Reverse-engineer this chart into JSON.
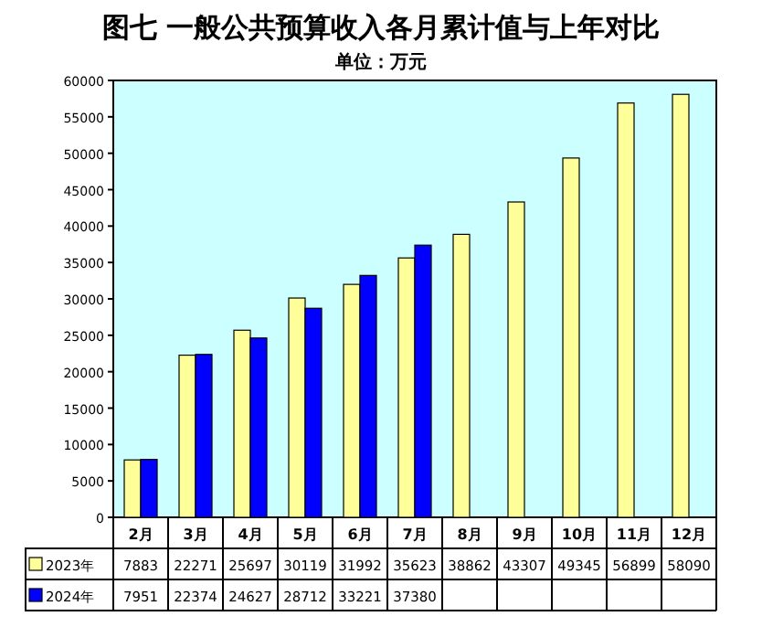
{
  "chart_data": {
    "type": "bar",
    "title": "图七  一般公共预算收入各月累计值与上年对比",
    "subtitle": "单位：万元",
    "categories": [
      "2月",
      "3月",
      "4月",
      "5月",
      "6月",
      "7月",
      "8月",
      "9月",
      "10月",
      "11月",
      "12月"
    ],
    "series": [
      {
        "name": "2023年",
        "color": "#ffff99",
        "values": [
          7883,
          22271,
          25697,
          30119,
          31992,
          35623,
          38862,
          43307,
          49345,
          56899,
          58090
        ]
      },
      {
        "name": "2024年",
        "color": "#0000ff",
        "values": [
          7951,
          22374,
          24627,
          28712,
          33221,
          37380,
          null,
          null,
          null,
          null,
          null
        ]
      }
    ],
    "ylim": [
      0,
      60000
    ],
    "yticks": [
      0,
      5000,
      10000,
      15000,
      20000,
      25000,
      30000,
      35000,
      40000,
      45000,
      50000,
      55000,
      60000
    ],
    "data_labels": true,
    "legend": "bottom left",
    "grid": false
  }
}
